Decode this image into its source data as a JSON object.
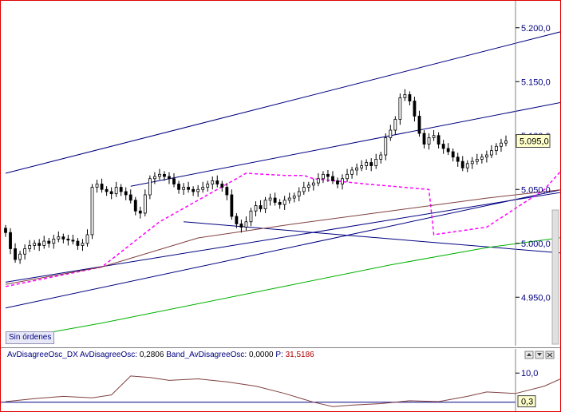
{
  "chart_data": [
    {
      "type": "candlestick",
      "title": "",
      "ylim": [
        4905,
        5225
      ],
      "y_ticks": [
        "5.200,0",
        "5.150,0",
        "5.100,0",
        "5.050,0",
        "5.000,0",
        "4.950,0"
      ],
      "y_tick_values": [
        5200,
        5150,
        5100,
        5050,
        5000,
        4950
      ],
      "last_price_label": "5.095,0",
      "last_price": 5095,
      "grid": false,
      "candles_close": [
        5010,
        4995,
        4985,
        4990,
        4995,
        4998,
        5000,
        4998,
        5002,
        5000,
        5004,
        5006,
        5004,
        5003,
        5002,
        4998,
        5000,
        5008,
        5052,
        5055,
        5050,
        5048,
        5046,
        5052,
        5048,
        5045,
        5040,
        5030,
        5028,
        5045,
        5060,
        5062,
        5064,
        5062,
        5060,
        5055,
        5050,
        5052,
        5050,
        5048,
        5050,
        5052,
        5055,
        5058,
        5055,
        5052,
        5045,
        5025,
        5018,
        5015,
        5020,
        5030,
        5035,
        5032,
        5040,
        5042,
        5038,
        5036,
        5040,
        5042,
        5044,
        5048,
        5052,
        5054,
        5056,
        5060,
        5064,
        5062,
        5058,
        5055,
        5060,
        5064,
        5068,
        5070,
        5072,
        5075,
        5072,
        5078,
        5082,
        5098,
        5105,
        5115,
        5135,
        5138,
        5132,
        5118,
        5102,
        5092,
        5098,
        5100,
        5092,
        5088,
        5085,
        5080,
        5076,
        5070,
        5074,
        5076,
        5078,
        5080,
        5082,
        5086,
        5090,
        5093,
        5095
      ],
      "series": [
        {
          "name": "",
          "color": "#ff00ff",
          "style": "dashed",
          "points": [
            [
              0,
              4960
            ],
            [
              20,
              4978
            ],
            [
              32,
              5020
            ],
            [
              50,
              5065
            ],
            [
              58,
              5063
            ],
            [
              62,
              5063
            ],
            [
              64,
              5060
            ],
            [
              75,
              5055
            ],
            [
              88,
              5050
            ],
            [
              89,
              5008
            ],
            [
              100,
              5015
            ],
            [
              112,
              5050
            ],
            [
              118,
              5080
            ],
            [
              125,
              5132
            ],
            [
              140,
              5130
            ],
            [
              154,
              5112
            ]
          ]
        },
        {
          "name": "",
          "color": "#804040",
          "style": "solid",
          "points": [
            [
              0,
              4962
            ],
            [
              20,
              4978
            ],
            [
              40,
              5005
            ],
            [
              60,
              5018
            ],
            [
              80,
              5030
            ],
            [
              100,
              5042
            ],
            [
              120,
              5052
            ],
            [
              140,
              5060
            ],
            [
              154,
              5064
            ]
          ]
        },
        {
          "name": "",
          "color": "#00b000",
          "style": "solid",
          "points": [
            [
              0,
              4910
            ],
            [
              20,
              4926
            ],
            [
              40,
              4944
            ],
            [
              60,
              4962
            ],
            [
              80,
              4980
            ],
            [
              100,
              4996
            ],
            [
              120,
              5008
            ],
            [
              140,
              5020
            ],
            [
              154,
              5028
            ]
          ]
        }
      ],
      "trendlines": [
        {
          "color": "#000080",
          "points": [
            [
              0,
              5065
            ],
            [
              138,
              5222
            ]
          ]
        },
        {
          "color": "#000080",
          "points": [
            [
              26,
              5053
            ],
            [
              140,
              5152
            ]
          ]
        },
        {
          "color": "#000080",
          "points": [
            [
              0,
              4940
            ],
            [
              140,
              5073
            ]
          ]
        },
        {
          "color": "#000080",
          "points": [
            [
              0,
              4964
            ],
            [
              140,
              5065
            ]
          ]
        },
        {
          "color": "#000080",
          "points": [
            [
              37,
              5020
            ],
            [
              140,
              4982
            ]
          ]
        },
        {
          "color": "#000080",
          "points": [
            [
              122,
              5142
            ],
            [
              144,
              5072
            ]
          ]
        },
        {
          "color": "#000080",
          "points": [
            [
              134,
              5078
            ],
            [
              146,
              5068
            ]
          ]
        }
      ]
    },
    {
      "type": "line",
      "title": "",
      "ylim": [
        -2,
        15
      ],
      "y_ticks": [
        "10,0"
      ],
      "y_tick_values": [
        10
      ],
      "last_value_label": "0,3",
      "last_value": 0.3,
      "zero_line_color": "#000080",
      "legend": {
        "name": "AvDisagreeOsc_DX",
        "label_1": "AvDisagreeOsc:",
        "value_1": "0,2806",
        "label_2": "Band_AvDisagreeOsc:",
        "value_2": "0,0000",
        "label_3": "P:",
        "value_3": "31,5186"
      },
      "series": [
        {
          "name": "AvDisagreeOsc",
          "color": "#804040",
          "x": [
            0,
            6,
            12,
            18,
            22,
            26,
            30,
            34,
            40,
            46,
            52,
            58,
            64,
            68,
            72,
            78,
            84,
            90,
            96,
            100,
            106,
            112,
            116,
            120,
            124,
            128,
            132,
            136,
            140,
            146,
            152
          ],
          "y": [
            0.2,
            1.2,
            2.0,
            1.5,
            2.5,
            9.0,
            8.5,
            7.5,
            8.0,
            7.0,
            5.5,
            3.0,
            0.0,
            -1.5,
            -1.0,
            -0.5,
            0.5,
            0.2,
            2.0,
            3.5,
            3.0,
            5.5,
            8.5,
            10.5,
            12.5,
            10.0,
            6.0,
            1.0,
            -2.0,
            -1.5,
            0.3
          ]
        }
      ]
    }
  ],
  "ui": {
    "orders_badge": "Sin órdenes",
    "colors": {
      "frame": "#e00000",
      "price_bars": "#000000",
      "trendlines": "#000080",
      "ma_dashed": "#ff00ff",
      "ma_brown": "#804040",
      "ma_green": "#00b000",
      "axis_text": "#000080"
    }
  }
}
